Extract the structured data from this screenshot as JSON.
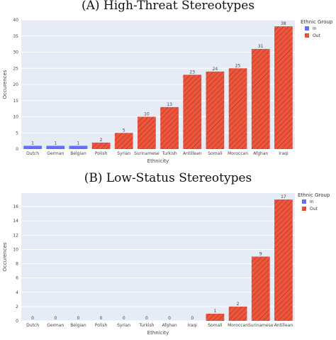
{
  "chart_data": [
    {
      "type": "bar",
      "title": "(A) High-Threat Stereotypes",
      "xlabel": "Ethnicity",
      "ylabel": "Occurences",
      "ylim": [
        0,
        40
      ],
      "yticks": [
        0,
        5,
        10,
        15,
        20,
        25,
        30,
        35,
        40
      ],
      "categories": [
        "Dutch",
        "German",
        "Belgian",
        "Polish",
        "Syrian",
        "Surinamese",
        "Turkish",
        "Antillean",
        "Somali",
        "Moroccan",
        "Afghan",
        "Iraqi"
      ],
      "values": [
        1,
        1,
        1,
        2,
        5,
        10,
        13,
        23,
        24,
        25,
        31,
        38
      ],
      "groups": [
        "In",
        "In",
        "In",
        "Out",
        "Out",
        "Out",
        "Out",
        "Out",
        "Out",
        "Out",
        "Out",
        "Out"
      ],
      "legend": {
        "title": "Ethnic Group",
        "entries": [
          {
            "name": "In",
            "color": "#636efa"
          },
          {
            "name": "Out",
            "color": "#ef553b"
          }
        ],
        "position": "right"
      },
      "grid": true
    },
    {
      "type": "bar",
      "title": "(B) Low-Status Stereotypes",
      "xlabel": "Ethnicity",
      "ylabel": "Occurences",
      "ylim": [
        0,
        17.9
      ],
      "yticks": [
        0,
        2,
        4,
        6,
        8,
        10,
        12,
        14,
        16
      ],
      "categories": [
        "Dutch",
        "German",
        "Belgian",
        "Polish",
        "Syrian",
        "Turkish",
        "Afghan",
        "Iraqi",
        "Somali",
        "Moroccan",
        "Surinamese",
        "Antillean"
      ],
      "values": [
        0,
        0,
        0,
        0,
        0,
        0,
        0,
        0,
        1,
        2,
        9,
        17
      ],
      "groups": [
        "In",
        "In",
        "In",
        "Out",
        "Out",
        "Out",
        "Out",
        "Out",
        "Out",
        "Out",
        "Out",
        "Out"
      ],
      "legend": {
        "title": "Ethnic Group",
        "entries": [
          {
            "name": "In",
            "color": "#636efa"
          },
          {
            "name": "Out",
            "color": "#ef553b"
          }
        ],
        "position": "right"
      },
      "grid": true
    }
  ]
}
